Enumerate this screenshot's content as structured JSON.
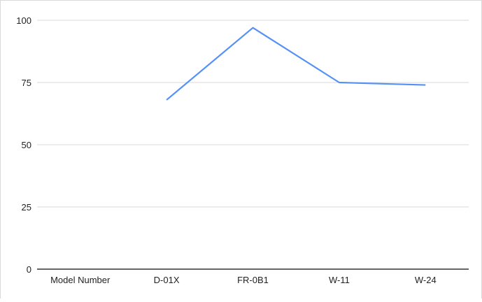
{
  "chart_data": {
    "type": "line",
    "title": "",
    "xlabel": "",
    "ylabel": "",
    "categories": [
      "Model Number",
      "D-01X",
      "FR-0B1",
      "W-11",
      "W-24"
    ],
    "series": [
      {
        "values": [
          null,
          68,
          97,
          75,
          74
        ],
        "color": "#5591f5"
      }
    ],
    "ylim": [
      0,
      100
    ],
    "yticks": [
      0,
      25,
      50,
      75,
      100
    ],
    "grid": true,
    "legend": "none"
  }
}
